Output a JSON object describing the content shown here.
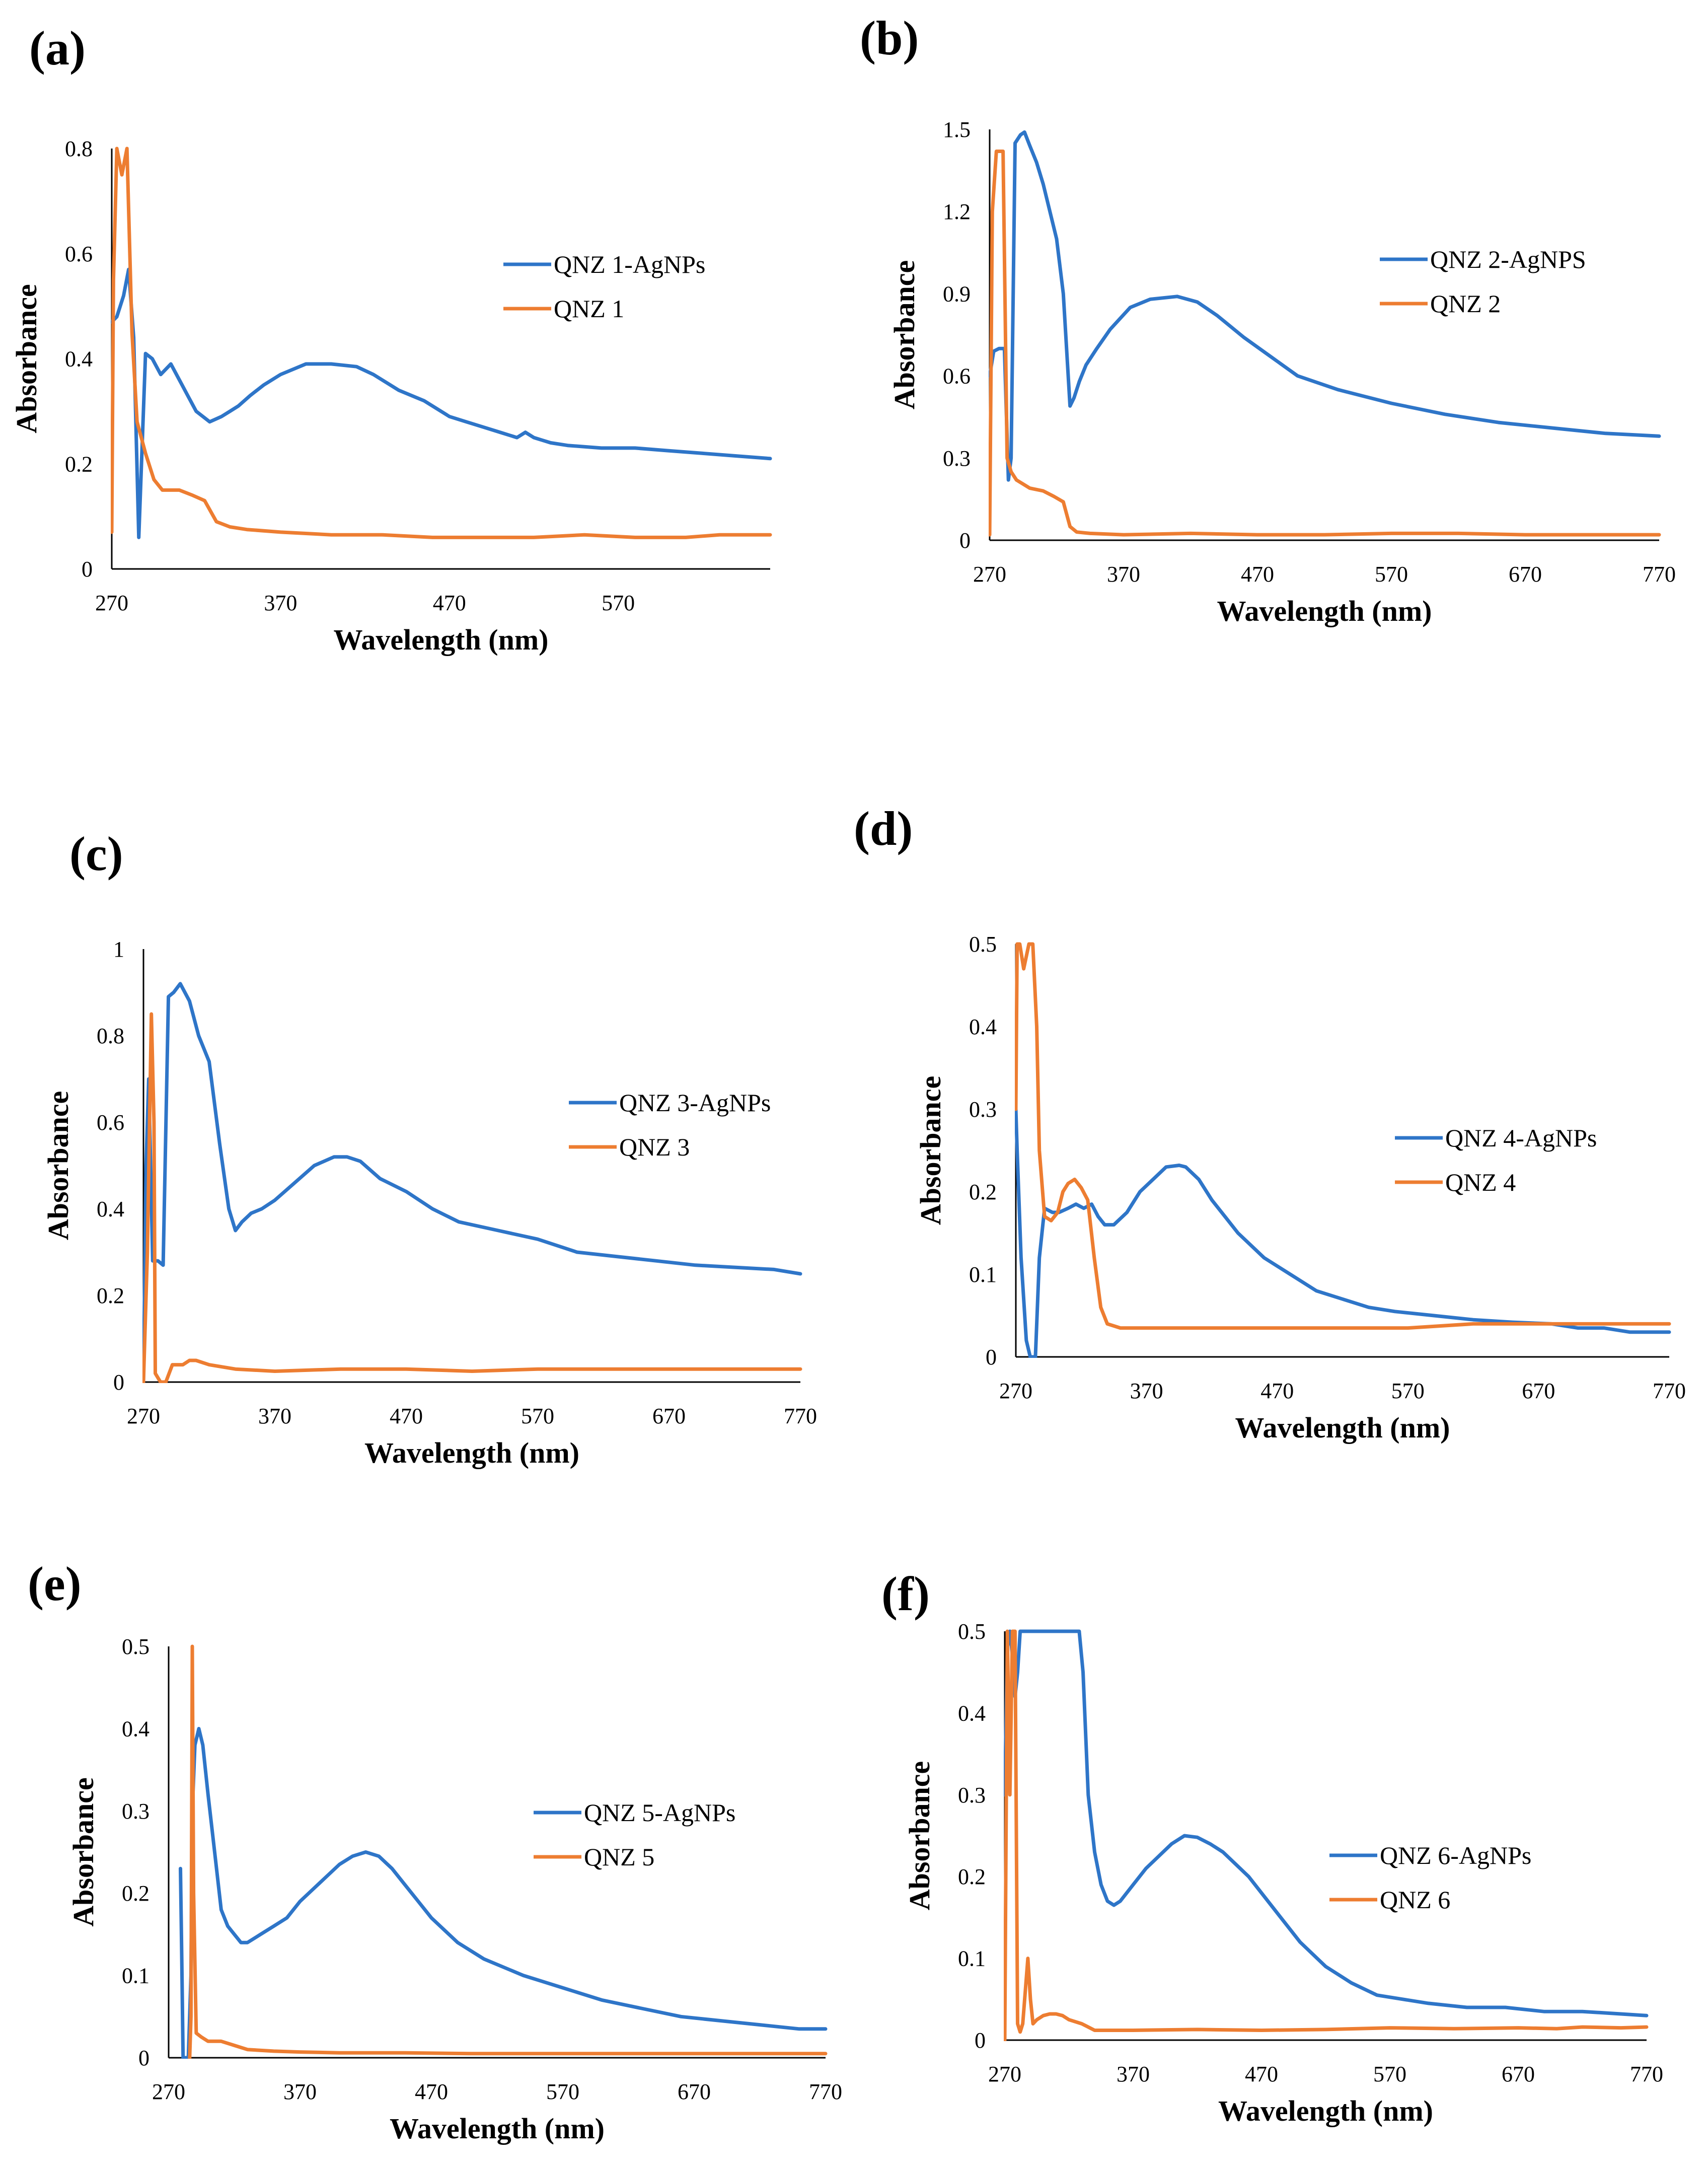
{
  "series_colors": {
    "agnps": "#2e75c8",
    "qnz": "#ed7d31"
  },
  "chart_data": [
    {
      "type": "line",
      "panel_label": "(a)",
      "title": "",
      "xlabel": "Wavelength (nm)",
      "ylabel": "Absorbance",
      "xlim": [
        270,
        660
      ],
      "ylim": [
        0,
        0.8
      ],
      "xticks": [
        270,
        370,
        470,
        570
      ],
      "yticks": [
        0,
        0.2,
        0.4,
        0.6,
        0.8
      ],
      "legend_position": "right",
      "series": [
        {
          "name": "QNZ 1-AgNPs",
          "color": "#2e75c8",
          "x": [
            270,
            273,
            277,
            280,
            283,
            286,
            290,
            294,
            299,
            305,
            310,
            315,
            320,
            328,
            335,
            340,
            345,
            352,
            360,
            370,
            385,
            400,
            415,
            425,
            440,
            455,
            470,
            480,
            490,
            500,
            510,
            515,
            520,
            525,
            530,
            540,
            560,
            580,
            600,
            620,
            640,
            660
          ],
          "y": [
            0.47,
            0.48,
            0.52,
            0.57,
            0.44,
            0.06,
            0.41,
            0.4,
            0.37,
            0.39,
            0.36,
            0.33,
            0.3,
            0.28,
            0.29,
            0.3,
            0.31,
            0.33,
            0.35,
            0.37,
            0.39,
            0.39,
            0.385,
            0.37,
            0.34,
            0.32,
            0.29,
            0.28,
            0.27,
            0.26,
            0.25,
            0.26,
            0.25,
            0.245,
            0.24,
            0.235,
            0.23,
            0.23,
            0.225,
            0.22,
            0.215,
            0.21
          ]
        },
        {
          "name": "QNZ 1",
          "color": "#ed7d31",
          "x": [
            270,
            271,
            273,
            276,
            279,
            282,
            285,
            290,
            295,
            300,
            310,
            318,
            325,
            332,
            340,
            350,
            370,
            400,
            430,
            460,
            490,
            520,
            550,
            580,
            610,
            630,
            660
          ],
          "y": [
            0.07,
            0.55,
            0.8,
            0.75,
            0.8,
            0.45,
            0.28,
            0.22,
            0.17,
            0.15,
            0.15,
            0.14,
            0.13,
            0.09,
            0.08,
            0.075,
            0.07,
            0.065,
            0.065,
            0.06,
            0.06,
            0.06,
            0.065,
            0.06,
            0.06,
            0.065,
            0.065
          ]
        }
      ]
    },
    {
      "type": "line",
      "panel_label": "(b)",
      "title": "",
      "xlabel": "Wavelength (nm)",
      "ylabel": "Absorbance",
      "xlim": [
        270,
        770
      ],
      "ylim": [
        0,
        1.5
      ],
      "xticks": [
        270,
        370,
        470,
        570,
        670,
        770
      ],
      "yticks": [
        0,
        0.3,
        0.6,
        0.9,
        1.2,
        1.5
      ],
      "legend_position": "right",
      "series": [
        {
          "name": "QNZ 2-AgNPS",
          "color": "#2e75c8",
          "x": [
            270,
            273,
            277,
            281,
            284,
            286,
            289,
            293,
            296,
            300,
            305,
            310,
            315,
            320,
            325,
            330,
            333,
            337,
            342,
            350,
            360,
            375,
            390,
            410,
            425,
            440,
            460,
            480,
            500,
            530,
            570,
            610,
            650,
            690,
            730,
            770
          ],
          "y": [
            0.6,
            0.69,
            0.7,
            0.7,
            0.22,
            0.3,
            1.45,
            1.48,
            1.49,
            1.44,
            1.38,
            1.3,
            1.2,
            1.1,
            0.9,
            0.49,
            0.52,
            0.58,
            0.64,
            0.7,
            0.77,
            0.85,
            0.88,
            0.89,
            0.87,
            0.82,
            0.74,
            0.67,
            0.6,
            0.55,
            0.5,
            0.46,
            0.43,
            0.41,
            0.39,
            0.38
          ]
        },
        {
          "name": "QNZ 2",
          "color": "#ed7d31",
          "x": [
            270,
            272,
            275,
            280,
            283,
            286,
            290,
            300,
            310,
            318,
            325,
            330,
            335,
            345,
            370,
            420,
            470,
            520,
            570,
            620,
            670,
            720,
            770
          ],
          "y": [
            0.02,
            1.2,
            1.42,
            1.42,
            0.3,
            0.25,
            0.22,
            0.19,
            0.18,
            0.16,
            0.14,
            0.05,
            0.03,
            0.025,
            0.02,
            0.025,
            0.02,
            0.02,
            0.025,
            0.025,
            0.02,
            0.02,
            0.02
          ]
        }
      ]
    },
    {
      "type": "line",
      "panel_label": "(c)",
      "title": "",
      "xlabel": "Wavelength (nm)",
      "ylabel": "Absorbance",
      "xlim": [
        270,
        770
      ],
      "ylim": [
        0,
        1
      ],
      "xticks": [
        270,
        370,
        470,
        570,
        670,
        770
      ],
      "yticks": [
        0,
        0.2,
        0.4,
        0.6,
        0.8,
        1
      ],
      "legend_position": "right",
      "series": [
        {
          "name": "QNZ 3-AgNPs",
          "color": "#2e75c8",
          "x": [
            270,
            272,
            274,
            277,
            281,
            285,
            289,
            293,
            298,
            305,
            312,
            320,
            328,
            335,
            340,
            345,
            352,
            360,
            370,
            385,
            400,
            415,
            425,
            435,
            450,
            470,
            490,
            510,
            540,
            570,
            600,
            630,
            660,
            690,
            720,
            750,
            770
          ],
          "y": [
            0.0,
            0.5,
            0.7,
            0.28,
            0.28,
            0.27,
            0.89,
            0.9,
            0.92,
            0.88,
            0.8,
            0.74,
            0.55,
            0.4,
            0.35,
            0.37,
            0.39,
            0.4,
            0.42,
            0.46,
            0.5,
            0.52,
            0.52,
            0.51,
            0.47,
            0.44,
            0.4,
            0.37,
            0.35,
            0.33,
            0.3,
            0.29,
            0.28,
            0.27,
            0.265,
            0.26,
            0.25
          ]
        },
        {
          "name": "QNZ 3",
          "color": "#ed7d31",
          "x": [
            270,
            273,
            276,
            278,
            279,
            281,
            283,
            287,
            292,
            300,
            305,
            310,
            320,
            340,
            370,
            420,
            470,
            520,
            570,
            620,
            670,
            720,
            770
          ],
          "y": [
            0.0,
            0.3,
            0.85,
            0.6,
            0.02,
            0.01,
            0.0,
            0.0,
            0.04,
            0.04,
            0.05,
            0.05,
            0.04,
            0.03,
            0.025,
            0.03,
            0.03,
            0.025,
            0.03,
            0.03,
            0.03,
            0.03,
            0.03
          ]
        }
      ]
    },
    {
      "type": "line",
      "panel_label": "(d)",
      "title": "",
      "xlabel": "Wavelength (nm)",
      "ylabel": "Absorbance",
      "xlim": [
        270,
        770
      ],
      "ylim": [
        0,
        0.5
      ],
      "xticks": [
        270,
        370,
        470,
        570,
        670,
        770
      ],
      "yticks": [
        0,
        0.1,
        0.2,
        0.3,
        0.4,
        0.5
      ],
      "legend_position": "right",
      "series": [
        {
          "name": "QNZ 4-AgNPs",
          "color": "#2e75c8",
          "x": [
            270,
            271,
            274,
            278,
            281,
            285,
            288,
            292,
            298,
            303,
            310,
            316,
            322,
            328,
            333,
            338,
            345,
            355,
            365,
            375,
            385,
            395,
            400,
            410,
            420,
            430,
            440,
            460,
            480,
            500,
            520,
            540,
            560,
            590,
            620,
            650,
            680,
            700,
            720,
            740,
            760,
            770
          ],
          "y": [
            0.3,
            0.25,
            0.12,
            0.02,
            0.0,
            0.0,
            0.12,
            0.18,
            0.175,
            0.175,
            0.18,
            0.185,
            0.18,
            0.185,
            0.17,
            0.16,
            0.16,
            0.175,
            0.2,
            0.215,
            0.23,
            0.232,
            0.23,
            0.215,
            0.19,
            0.17,
            0.15,
            0.12,
            0.1,
            0.08,
            0.07,
            0.06,
            0.055,
            0.05,
            0.045,
            0.042,
            0.04,
            0.035,
            0.035,
            0.03,
            0.03,
            0.03
          ]
        },
        {
          "name": "QNZ 4",
          "color": "#ed7d31",
          "x": [
            270,
            271,
            273,
            276,
            280,
            283,
            286,
            288,
            292,
            297,
            302,
            306,
            310,
            315,
            320,
            325,
            330,
            335,
            340,
            350,
            370,
            420,
            470,
            520,
            570,
            620,
            670,
            720,
            770
          ],
          "y": [
            0.3,
            0.5,
            0.5,
            0.47,
            0.5,
            0.5,
            0.4,
            0.25,
            0.17,
            0.165,
            0.175,
            0.2,
            0.21,
            0.215,
            0.205,
            0.19,
            0.12,
            0.06,
            0.04,
            0.035,
            0.035,
            0.035,
            0.035,
            0.035,
            0.035,
            0.04,
            0.04,
            0.04,
            0.04
          ]
        }
      ]
    },
    {
      "type": "line",
      "panel_label": "(e)",
      "title": "",
      "xlabel": "Wavelength (nm)",
      "ylabel": "Absorbance",
      "xlim": [
        270,
        770
      ],
      "ylim": [
        0,
        0.5
      ],
      "xticks": [
        270,
        370,
        470,
        570,
        670,
        770
      ],
      "yticks": [
        0,
        0.1,
        0.2,
        0.3,
        0.4,
        0.5
      ],
      "legend_position": "right",
      "series": [
        {
          "name": "QNZ 5-AgNPs",
          "color": "#2e75c8",
          "x": [
            279,
            280,
            281,
            283,
            285,
            287,
            288,
            290,
            293,
            296,
            300,
            305,
            310,
            315,
            320,
            325,
            330,
            340,
            350,
            360,
            370,
            380,
            390,
            400,
            410,
            420,
            430,
            440,
            450,
            460,
            470,
            490,
            510,
            540,
            570,
            600,
            630,
            660,
            690,
            720,
            750,
            770
          ],
          "y": [
            0.23,
            0.12,
            0.0,
            0.0,
            0.0,
            0.1,
            0.3,
            0.38,
            0.4,
            0.38,
            0.32,
            0.25,
            0.18,
            0.16,
            0.15,
            0.14,
            0.14,
            0.15,
            0.16,
            0.17,
            0.19,
            0.205,
            0.22,
            0.235,
            0.245,
            0.25,
            0.245,
            0.23,
            0.21,
            0.19,
            0.17,
            0.14,
            0.12,
            0.1,
            0.085,
            0.07,
            0.06,
            0.05,
            0.045,
            0.04,
            0.035,
            0.035
          ]
        },
        {
          "name": "QNZ 5",
          "color": "#ed7d31",
          "x": [
            286,
            287,
            288,
            289,
            291,
            295,
            300,
            310,
            320,
            330,
            350,
            370,
            400,
            450,
            500,
            550,
            600,
            650,
            700,
            750,
            770
          ],
          "y": [
            0.0,
            0.05,
            0.5,
            0.2,
            0.03,
            0.025,
            0.02,
            0.02,
            0.015,
            0.01,
            0.008,
            0.007,
            0.006,
            0.006,
            0.005,
            0.005,
            0.005,
            0.005,
            0.005,
            0.005,
            0.005
          ]
        }
      ]
    },
    {
      "type": "line",
      "panel_label": "(f)",
      "title": "",
      "xlabel": "Wavelength (nm)",
      "ylabel": "Absorbance",
      "xlim": [
        270,
        770
      ],
      "ylim": [
        0,
        0.5
      ],
      "xticks": [
        270,
        370,
        470,
        570,
        670,
        770
      ],
      "yticks": [
        0,
        0.1,
        0.2,
        0.3,
        0.4,
        0.5
      ],
      "legend_position": "right",
      "series": [
        {
          "name": "QNZ 6-AgNPs",
          "color": "#2e75c8",
          "x": [
            270,
            272,
            274,
            276,
            278,
            280,
            282,
            284,
            286,
            290,
            294,
            298,
            302,
            306,
            310,
            314,
            318,
            322,
            325,
            328,
            331,
            335,
            340,
            345,
            350,
            355,
            360,
            370,
            380,
            390,
            400,
            410,
            420,
            430,
            440,
            450,
            460,
            480,
            500,
            520,
            540,
            560,
            580,
            600,
            630,
            660,
            690,
            720,
            750,
            770
          ],
          "y": [
            0.3,
            0.48,
            0.5,
            0.47,
            0.42,
            0.45,
            0.5,
            0.5,
            0.5,
            0.5,
            0.5,
            0.5,
            0.5,
            0.5,
            0.5,
            0.5,
            0.5,
            0.5,
            0.5,
            0.5,
            0.45,
            0.3,
            0.23,
            0.19,
            0.17,
            0.165,
            0.17,
            0.19,
            0.21,
            0.225,
            0.24,
            0.25,
            0.248,
            0.24,
            0.23,
            0.215,
            0.2,
            0.16,
            0.12,
            0.09,
            0.07,
            0.055,
            0.05,
            0.045,
            0.04,
            0.04,
            0.035,
            0.035,
            0.032,
            0.03
          ]
        },
        {
          "name": "QNZ 6",
          "color": "#ed7d31",
          "x": [
            270,
            272,
            274,
            276,
            278,
            280,
            282,
            284,
            286,
            288,
            290,
            292,
            295,
            300,
            305,
            310,
            315,
            320,
            330,
            340,
            370,
            420,
            470,
            520,
            570,
            620,
            670,
            700,
            720,
            750,
            770
          ],
          "y": [
            0.0,
            0.5,
            0.3,
            0.5,
            0.5,
            0.02,
            0.01,
            0.02,
            0.06,
            0.1,
            0.05,
            0.02,
            0.025,
            0.03,
            0.032,
            0.032,
            0.03,
            0.025,
            0.02,
            0.012,
            0.012,
            0.013,
            0.012,
            0.013,
            0.015,
            0.014,
            0.015,
            0.014,
            0.016,
            0.015,
            0.016
          ]
        }
      ]
    }
  ]
}
